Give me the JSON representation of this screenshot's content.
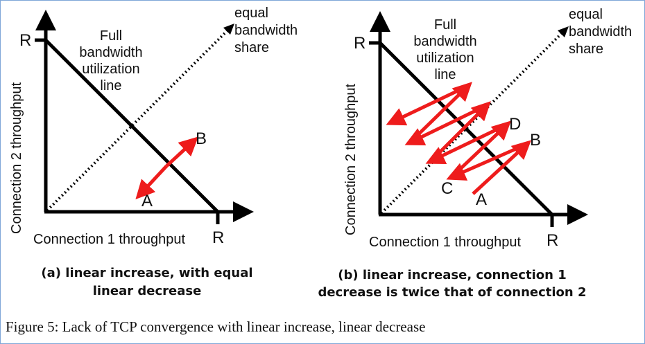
{
  "colors": {
    "axis": "#000000",
    "arrow": "#ee1c1c",
    "text": "#111111",
    "frame": "#7ea6d8"
  },
  "panel_a": {
    "x_axis_label": "Connection 1 throughput",
    "y_axis_label": "Connection 2 throughput",
    "x_max_label": "R",
    "y_max_label": "R",
    "full_line_label": [
      "Full",
      "bandwidth",
      "utilization",
      "line"
    ],
    "equal_share_label": [
      "equal",
      "bandwidth",
      "share"
    ],
    "points": {
      "a": "A",
      "b": "B"
    },
    "caption": [
      "(a) linear increase, with equal",
      "linear decrease"
    ]
  },
  "panel_b": {
    "x_axis_label": "Connection 1 throughput",
    "y_axis_label": "Connection 2 throughput",
    "x_max_label": "R",
    "y_max_label": "R",
    "full_line_label": [
      "Full",
      "bandwidth",
      "utilization",
      "line"
    ],
    "equal_share_label": [
      "equal",
      "bandwidth",
      "share"
    ],
    "points": {
      "a": "A",
      "b": "B",
      "c": "C",
      "d": "D"
    },
    "caption": [
      "(b) linear increase, connection 1",
      "decrease is twice that of connection 2"
    ]
  },
  "figure_caption": "Figure 5: Lack of TCP convergence with linear increase, linear decrease"
}
